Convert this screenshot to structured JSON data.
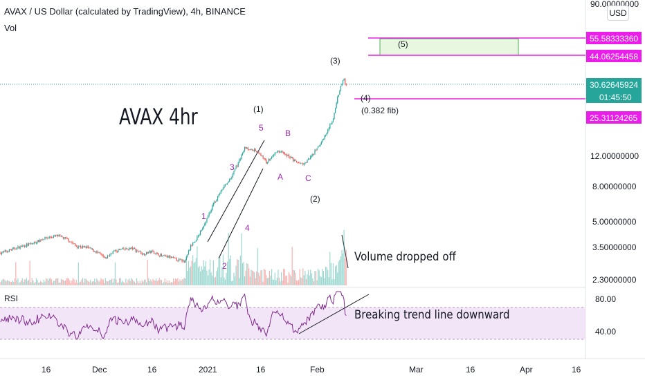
{
  "header": {
    "title": "AVAX / US Dollar (calculated by TradingView), 4h, BINANCE",
    "volume_label": "Vol",
    "rsi_label": "RSI",
    "currency_button": "USD"
  },
  "annotations": {
    "chart_title": "AVAX 4hr",
    "volume_note": "Volume dropped off",
    "rsi_note": "Breaking trend line downward",
    "fib_note": "(0.382 fib)",
    "waves": {
      "w1": "(1)",
      "w2": "(2)",
      "w3": "(3)",
      "w4": "(4)",
      "w5": "(5)",
      "s1": "1",
      "s2": "2",
      "s3": "3",
      "s4": "4",
      "s5": "5",
      "a": "A",
      "b": "B",
      "c": "C"
    }
  },
  "colors": {
    "up": "#26a69a",
    "down": "#ef5350",
    "magenta": "#e91ee9",
    "purple_text": "#9c27b0",
    "rsi_line": "#7e2a8c",
    "rsi_band": "#f3e5f8",
    "target_box": "#e8f8e0",
    "price_tag": "#26a69a"
  },
  "chart_data": {
    "type": "candlestick",
    "scale": "log",
    "price_axis": {
      "ticks": [
        "90.00000000",
        "12.00000000",
        "8.00000000",
        "5.00000000",
        "3.50000000",
        "2.30000000"
      ],
      "tick_values": [
        90,
        12,
        8,
        5,
        3.5,
        2.3
      ]
    },
    "price_labels": [
      {
        "text": "55.58333360",
        "value": 55.5833336,
        "kind": "magenta"
      },
      {
        "text": "44.06254458",
        "value": 44.06254458,
        "kind": "magenta"
      },
      {
        "text": "30.62645924",
        "value": 30.62645924,
        "kind": "last"
      },
      {
        "text": "01:45:50",
        "value": 30.62645924,
        "kind": "countdown"
      },
      {
        "text": "25.31124265",
        "value": 25.31124265,
        "kind": "magenta"
      }
    ],
    "rsi_axis": {
      "ticks": [
        "80.00",
        "40.00"
      ],
      "tick_values": [
        80,
        40
      ],
      "band": [
        30,
        70
      ]
    },
    "x_axis": {
      "labels": [
        "16",
        "Dec",
        "16",
        "2021",
        "16",
        "Feb",
        "Mar",
        "16",
        "Apr",
        "16"
      ]
    },
    "price_path": [
      [
        0,
        3.3
      ],
      [
        10,
        3.45
      ],
      [
        20,
        3.6
      ],
      [
        30,
        3.75
      ],
      [
        40,
        4.0
      ],
      [
        52,
        4.15
      ],
      [
        62,
        3.95
      ],
      [
        70,
        3.6
      ],
      [
        80,
        3.55
      ],
      [
        90,
        3.3
      ],
      [
        97,
        3.05
      ],
      [
        104,
        3.35
      ],
      [
        112,
        3.45
      ],
      [
        122,
        3.5
      ],
      [
        132,
        3.25
      ],
      [
        140,
        3.35
      ],
      [
        150,
        3.15
      ],
      [
        156,
        3.12
      ],
      [
        164,
        3.0
      ],
      [
        170,
        2.95
      ],
      [
        176,
        3.6
      ],
      [
        184,
        4.2
      ],
      [
        192,
        5.4
      ],
      [
        198,
        6.5
      ],
      [
        206,
        7.8
      ],
      [
        214,
        9.2
      ],
      [
        220,
        10.9
      ],
      [
        226,
        13.5
      ],
      [
        232,
        13.2
      ],
      [
        240,
        12.5
      ],
      [
        246,
        11.0
      ],
      [
        252,
        12.2
      ],
      [
        258,
        12.8
      ],
      [
        266,
        12.1
      ],
      [
        274,
        11.0
      ],
      [
        280,
        10.8
      ],
      [
        286,
        11.6
      ],
      [
        294,
        13.5
      ],
      [
        300,
        15.5
      ],
      [
        304,
        17.5
      ],
      [
        308,
        20.0
      ],
      [
        310,
        23.0
      ],
      [
        312,
        26.0
      ],
      [
        314,
        29.0
      ],
      [
        316,
        31.8
      ],
      [
        318,
        33.5
      ],
      [
        320,
        30.6
      ]
    ]
  }
}
